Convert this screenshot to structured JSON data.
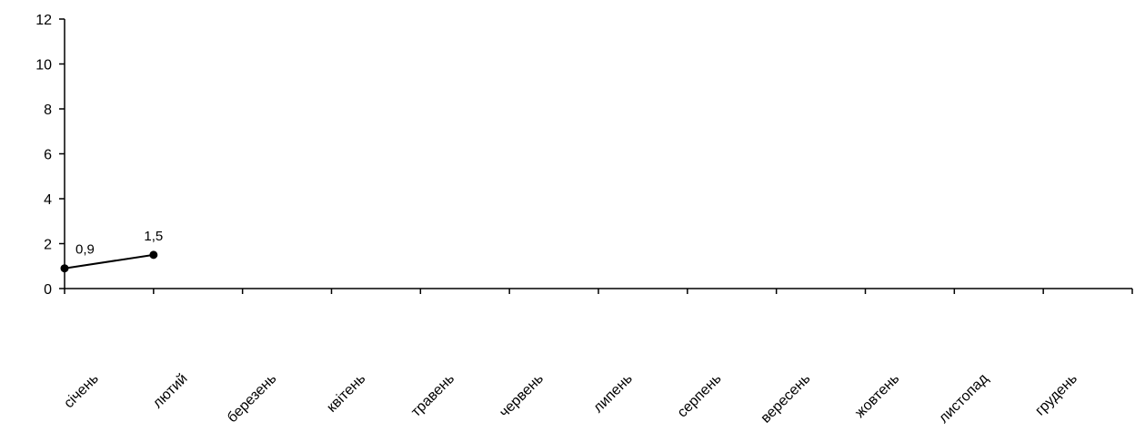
{
  "chart_data": {
    "type": "line",
    "title": "",
    "xlabel": "",
    "ylabel": "",
    "categories": [
      "січень",
      "лютий",
      "березень",
      "квітень",
      "травень",
      "червень",
      "липень",
      "серпень",
      "вересень",
      "жовтень",
      "листопад",
      "грудень"
    ],
    "series": [
      {
        "values": [
          0.9,
          1.5,
          null,
          null,
          null,
          null,
          null,
          null,
          null,
          null,
          null,
          null
        ],
        "color": "#000000"
      }
    ],
    "data_labels": [
      "0,9",
      "1,5"
    ],
    "y_ticks": [
      "0",
      "2",
      "4",
      "6",
      "8",
      "10",
      "12"
    ],
    "ylim": [
      0,
      12
    ],
    "grid": false,
    "legend": "none"
  }
}
